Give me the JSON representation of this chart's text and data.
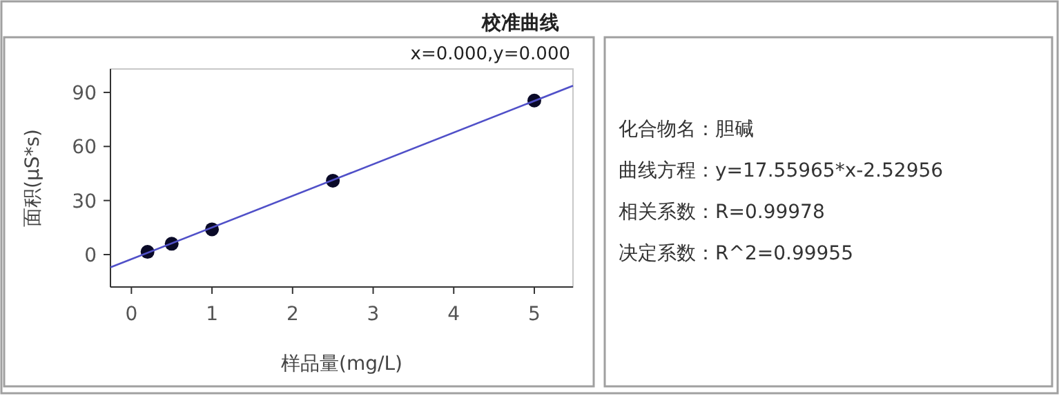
{
  "chart_data": [
    {
      "type": "scatter",
      "title": "校准曲线",
      "xlabel": "样品量(mg/L)",
      "ylabel": "面积(μS*s)",
      "annotations": [
        "x=0.000,y=0.000"
      ],
      "xlim": [
        -0.26,
        5.48
      ],
      "ylim": [
        -18,
        103
      ],
      "xticks": [
        0,
        1,
        2,
        3,
        4,
        5
      ],
      "yticks": [
        0,
        30,
        60,
        90
      ],
      "grid": false,
      "series": [
        {
          "type": "scatter",
          "color": "#0a0a28",
          "marker": "circle",
          "x": [
            0.2,
            0.5,
            1,
            2.5,
            5
          ],
          "values": [
            1.5,
            6,
            14,
            41,
            85.5
          ]
        },
        {
          "type": "line",
          "color": "#5050c8",
          "marker": "none",
          "line_style": "solid",
          "x": [
            -0.26,
            5.48
          ],
          "values": [
            -7.1,
            93.7
          ]
        }
      ]
    },
    {
      "type": "other",
      "annotations": [
        "化合物名：胆碱",
        "曲线方程：y=17.55965*x-2.52956",
        "相关系数：R=0.99978",
        "决定系数：R^2=0.99955"
      ]
    }
  ]
}
